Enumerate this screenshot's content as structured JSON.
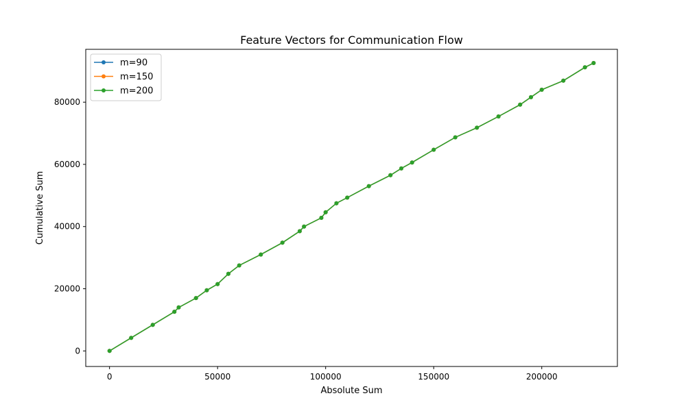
{
  "chart_data": {
    "type": "line",
    "title": "Feature Vectors for Communication Flow",
    "xlabel": "Absolute Sum",
    "ylabel": "Cumulative Sum",
    "xlim": [
      -11000,
      235000
    ],
    "ylim": [
      -5000,
      97000
    ],
    "xticks": [
      0,
      50000,
      100000,
      150000,
      200000
    ],
    "yticks": [
      0,
      20000,
      40000,
      60000,
      80000
    ],
    "legend_position": "upper-left",
    "grid": false,
    "series": [
      {
        "name": "m=90",
        "color": "#1f77b4",
        "x": [
          0,
          10000,
          20000,
          30000,
          32000,
          40000,
          45000,
          50000,
          55000,
          60000,
          70000,
          80000,
          88000,
          90000,
          98000,
          100000,
          105000,
          110000,
          120000,
          130000,
          135000,
          140000,
          150000,
          160000,
          170000,
          180000,
          190000,
          195000,
          200000,
          210000,
          220000,
          224000
        ],
        "y": [
          0,
          4200,
          8400,
          12600,
          14000,
          17000,
          19500,
          21500,
          24800,
          27500,
          31000,
          34800,
          38500,
          40000,
          42800,
          44600,
          47500,
          49300,
          53000,
          56500,
          58700,
          60600,
          64700,
          68700,
          71800,
          75400,
          79200,
          81600,
          84000,
          86900,
          91200,
          92600
        ]
      },
      {
        "name": "m=150",
        "color": "#ff7f0e",
        "x": [
          0,
          10000,
          20000,
          30000,
          32000,
          40000,
          45000,
          50000,
          55000,
          60000,
          70000,
          80000,
          88000,
          90000,
          98000,
          100000,
          105000,
          110000,
          120000,
          130000,
          135000,
          140000,
          150000,
          160000,
          170000,
          180000,
          190000,
          195000,
          200000,
          210000,
          220000,
          224000
        ],
        "y": [
          0,
          4200,
          8400,
          12600,
          14000,
          17000,
          19500,
          21500,
          24800,
          27500,
          31000,
          34800,
          38500,
          40000,
          42800,
          44600,
          47500,
          49300,
          53000,
          56500,
          58700,
          60600,
          64700,
          68700,
          71800,
          75400,
          79200,
          81600,
          84000,
          86900,
          91200,
          92600
        ]
      },
      {
        "name": "m=200",
        "color": "#2ca02c",
        "x": [
          0,
          10000,
          20000,
          30000,
          32000,
          40000,
          45000,
          50000,
          55000,
          60000,
          70000,
          80000,
          88000,
          90000,
          98000,
          100000,
          105000,
          110000,
          120000,
          130000,
          135000,
          140000,
          150000,
          160000,
          170000,
          180000,
          190000,
          195000,
          200000,
          210000,
          220000,
          224000
        ],
        "y": [
          0,
          4200,
          8400,
          12600,
          14000,
          17000,
          19500,
          21500,
          24800,
          27500,
          31000,
          34800,
          38500,
          40000,
          42800,
          44600,
          47500,
          49300,
          53000,
          56500,
          58700,
          60600,
          64700,
          68700,
          71800,
          75400,
          79200,
          81600,
          84000,
          86900,
          91200,
          92600
        ]
      }
    ]
  }
}
